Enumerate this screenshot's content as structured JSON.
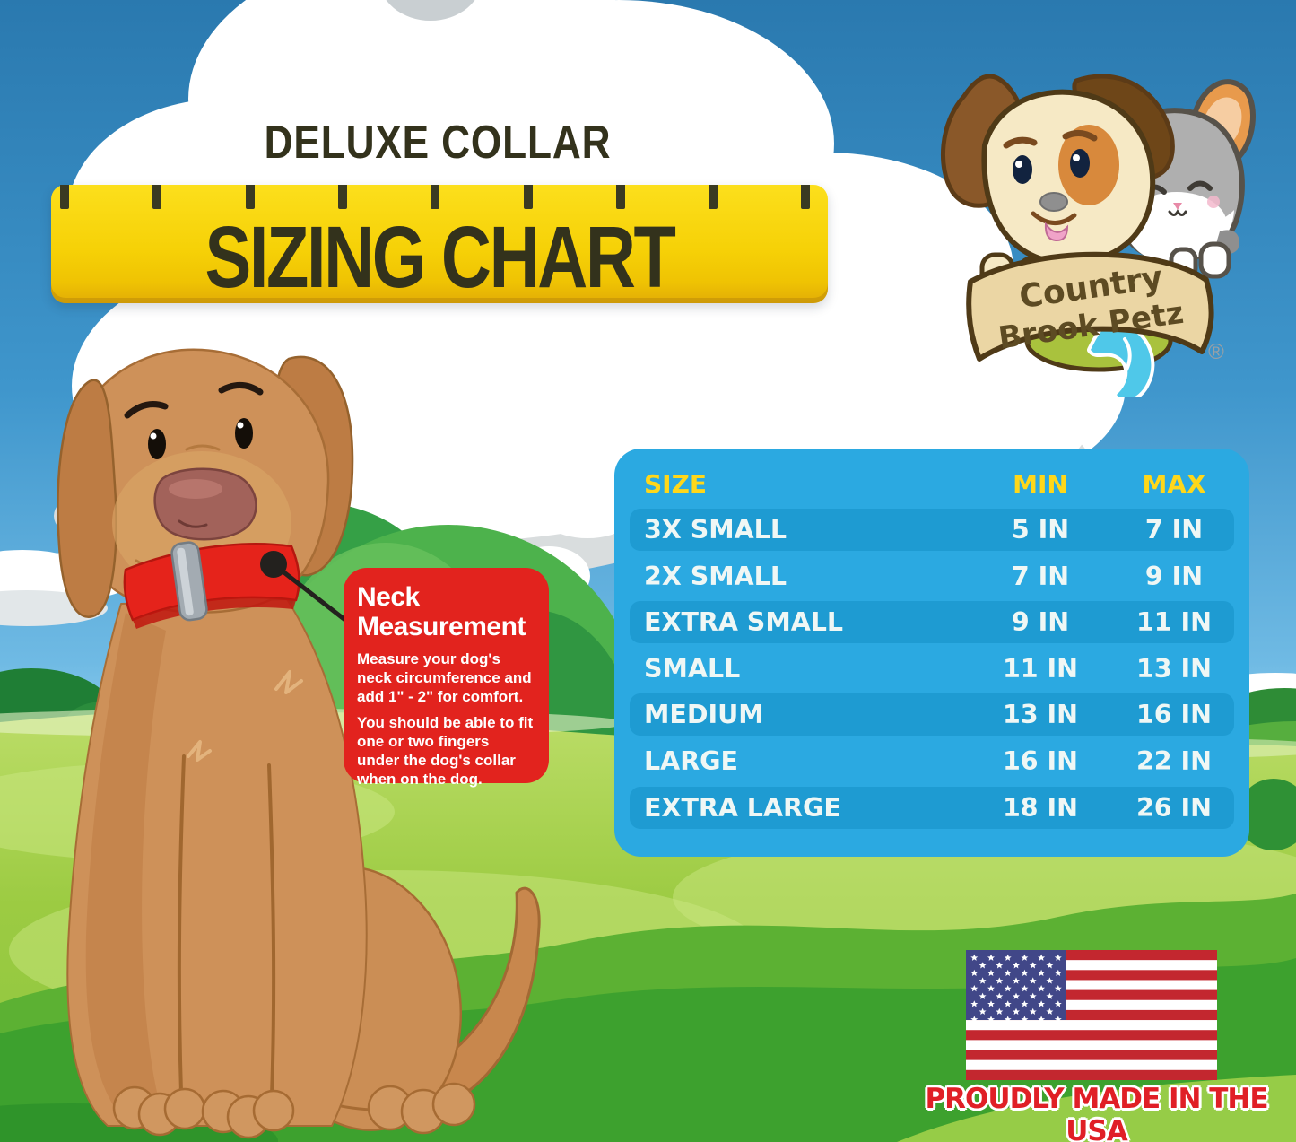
{
  "title": {
    "line1": "DELUXE COLLAR",
    "line2": "SIZING CHART"
  },
  "logo": {
    "brand_line1": "Country",
    "brand_line2": "Brook Petz",
    "registered": "®"
  },
  "callout": {
    "heading": "Neck Measurement",
    "body1": "Measure your dog's neck circumference and add 1\" - 2\" for comfort.",
    "body2": "You should be able to fit one or two fingers under the dog's collar when on the dog."
  },
  "chart_data": {
    "type": "table",
    "title": "Deluxe Collar Sizing Chart",
    "columns": [
      "SIZE",
      "MIN",
      "MAX"
    ],
    "rows": [
      {
        "size": "3X SMALL",
        "min": "5 IN",
        "max": "7 IN"
      },
      {
        "size": "2X SMALL",
        "min": "7 IN",
        "max": "9 IN"
      },
      {
        "size": "EXTRA SMALL",
        "min": "9 IN",
        "max": "11 IN"
      },
      {
        "size": "SMALL",
        "min": "11 IN",
        "max": "13 IN"
      },
      {
        "size": "MEDIUM",
        "min": "13 IN",
        "max": "16 IN"
      },
      {
        "size": "LARGE",
        "min": "16 IN",
        "max": "22 IN"
      },
      {
        "size": "EXTRA LARGE",
        "min": "18 IN",
        "max": "26 IN"
      }
    ],
    "units": "inches (neck circumference)"
  },
  "footer": {
    "made_in": "PROUDLY MADE IN THE USA"
  },
  "colors": {
    "sky_blue": "#3F96CC",
    "grass_green": "#8CC63F",
    "ruler_yellow": "#F6D107",
    "title_ink": "#33321C",
    "panel_blue": "#2BA9E1",
    "row_stripe_blue": "#1E9BD2",
    "header_yellow": "#FFD71A",
    "callout_red": "#E2231E",
    "collar_red": "#E5231B",
    "flag_red": "#C3272F",
    "flag_blue": "#414788",
    "footer_red": "#E01F26",
    "logo_banner_tan": "#EBD6A4"
  }
}
